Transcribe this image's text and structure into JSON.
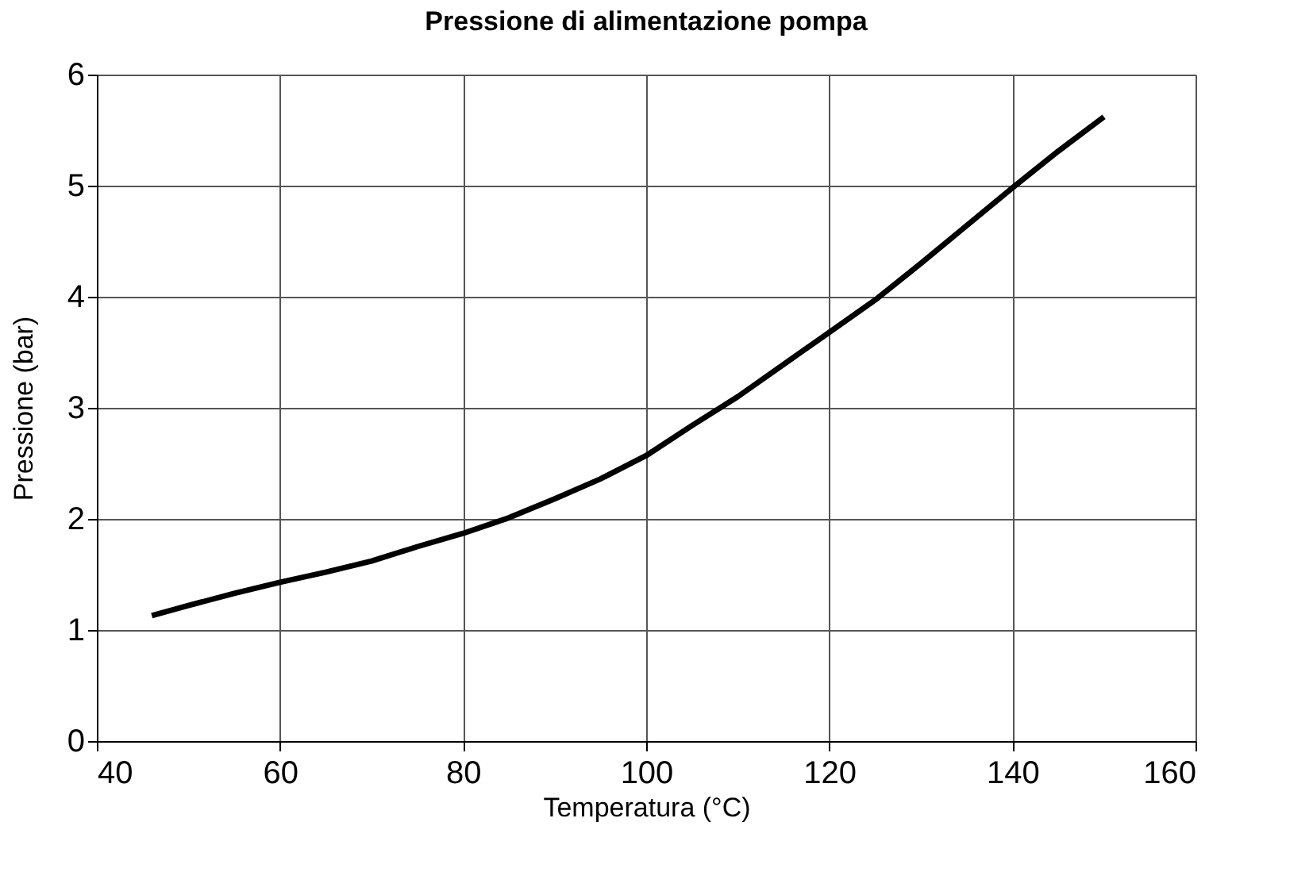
{
  "chart_data": {
    "type": "line",
    "title": "Pressione di alimentazione pompa",
    "xlabel": "Temperatura (°C)",
    "ylabel": "Pressione (bar)",
    "series": [
      {
        "color": "#000000",
        "x": [
          46,
          50,
          55,
          60,
          65,
          70,
          75,
          80,
          85,
          90,
          95,
          100,
          105,
          110,
          115,
          120,
          125,
          130,
          135,
          140,
          145,
          150
        ],
        "values": [
          1.13,
          1.22,
          1.33,
          1.43,
          1.52,
          1.62,
          1.75,
          1.87,
          2.01,
          2.18,
          2.36,
          2.57,
          2.84,
          3.1,
          3.39,
          3.68,
          3.97,
          4.3,
          4.64,
          4.98,
          5.31,
          5.62
        ]
      }
    ],
    "xlim": [
      40,
      160
    ],
    "xticks": [
      40,
      60,
      80,
      100,
      120,
      140,
      160
    ],
    "ylim": [
      0,
      6
    ],
    "yticks": [
      0,
      1,
      2,
      3,
      4,
      5,
      6
    ],
    "grid": true,
    "marker": "none",
    "line_style": "solid"
  }
}
